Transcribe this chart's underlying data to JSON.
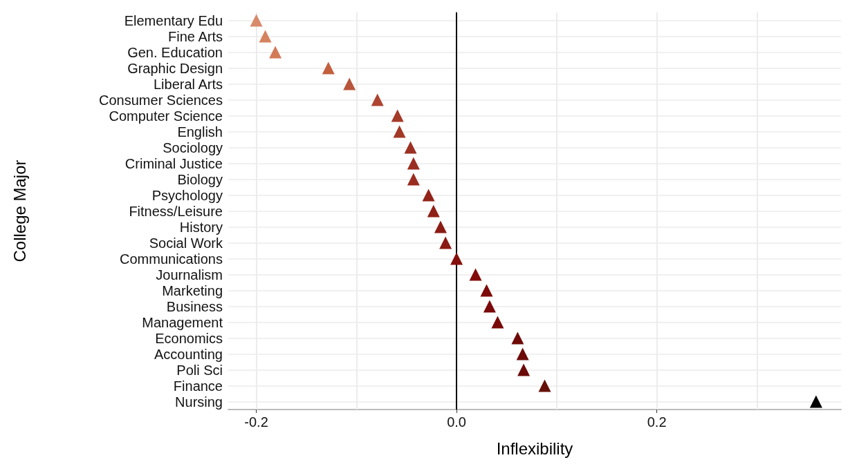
{
  "chart_data": {
    "type": "scatter",
    "orientation": "horizontal",
    "xlabel": "Inflexibility",
    "ylabel": "College Major",
    "categories": [
      "Elementary Edu",
      "Fine Arts",
      "Gen. Education",
      "Graphic Design",
      "Liberal Arts",
      "Consumer Sciences",
      "Computer Science",
      "English",
      "Sociology",
      "Criminal Justice",
      "Biology",
      "Psychology",
      "Fitness/Leisure",
      "History",
      "Social Work",
      "Communications",
      "Journalism",
      "Marketing",
      "Business",
      "Management",
      "Economics",
      "Accounting",
      "Poli Sci",
      "Finance",
      "Nursing"
    ],
    "values": [
      -0.2,
      -0.191,
      -0.181,
      -0.128,
      -0.107,
      -0.079,
      -0.059,
      -0.057,
      -0.046,
      -0.043,
      -0.043,
      -0.028,
      -0.023,
      -0.016,
      -0.011,
      0.0,
      0.019,
      0.03,
      0.033,
      0.041,
      0.061,
      0.066,
      0.067,
      0.088,
      0.359
    ],
    "colors": [
      "#d88a6c",
      "#d6825f",
      "#d27a58",
      "#c2603e",
      "#b8553a",
      "#ad4430",
      "#a43a28",
      "#a23826",
      "#9c3023",
      "#9a2e22",
      "#9a2d21",
      "#922319",
      "#8f2018",
      "#8b1c14",
      "#891912",
      "#850f0c",
      "#820b0a",
      "#7d0909",
      "#7b0909",
      "#780808",
      "#6e0a06",
      "#6c0a07",
      "#6b0a07",
      "#651109",
      "#000000"
    ],
    "xlim": [
      -0.228,
      0.384
    ],
    "xticks": [
      {
        "value": -0.2,
        "label": "-0.2"
      },
      {
        "value": -0.1,
        "label": null
      },
      {
        "value": 0,
        "label": "0.0"
      },
      {
        "value": 0.1,
        "label": null
      },
      {
        "value": 0.2,
        "label": "0.2"
      },
      {
        "value": 0.3,
        "label": null
      }
    ],
    "ref_lines": [
      {
        "axis": "x",
        "value": 0,
        "label": null,
        "color": "#000000"
      }
    ],
    "marker": "triangle",
    "grid": true
  }
}
